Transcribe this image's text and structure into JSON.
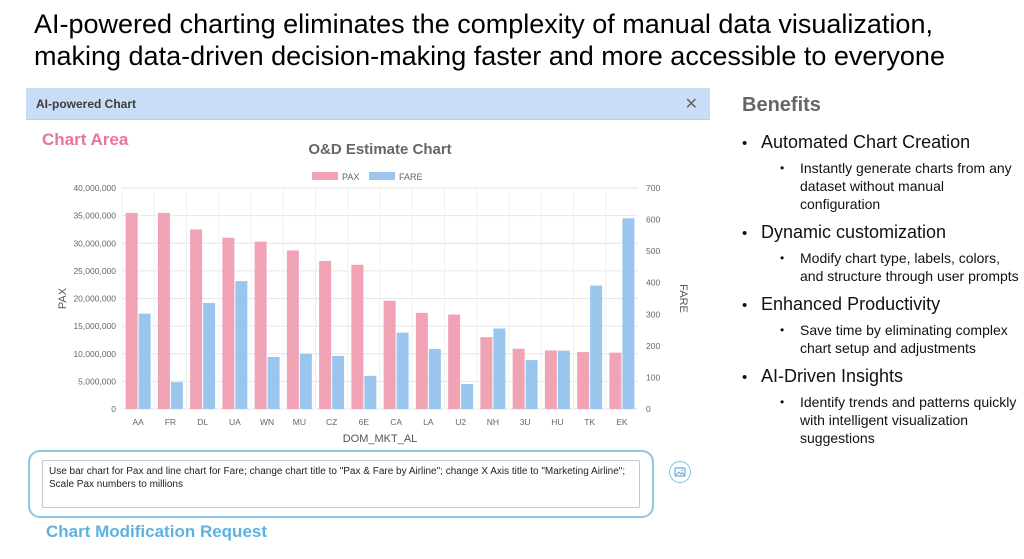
{
  "headline": "AI-powered charting eliminates the complexity of manual data visualization, making data-driven decision-making faster and more accessible to everyone",
  "panel": {
    "title": "AI-powered Chart",
    "chart_area_label": "Chart Area",
    "request_text": "Use bar chart for Pax and line chart for Fare; change chart title to \"Pax & Fare by Airline\"; change X Axis title to \"Marketing Airline\"; Scale Pax numbers to millions",
    "request_label": "Chart Modification Request"
  },
  "colors": {
    "pax": "#f0a3b4",
    "fare": "#9ac6ee",
    "chart_area": "#e9739a",
    "request": "#5fb1e0",
    "header": "#c9def6"
  },
  "icons": {
    "close": "close-icon",
    "image": "image-icon"
  },
  "chart_data": {
    "type": "bar",
    "title": "O&D Estimate Chart",
    "xlabel": "DOM_MKT_AL",
    "ylabel": "PAX",
    "y2label": "FARE",
    "categories": [
      "AA",
      "FR",
      "DL",
      "UA",
      "WN",
      "MU",
      "CZ",
      "6E",
      "CA",
      "LA",
      "U2",
      "NH",
      "3U",
      "HU",
      "TK",
      "EK"
    ],
    "series": [
      {
        "name": "PAX",
        "axis": "left",
        "values": [
          35500000,
          35500000,
          32500000,
          31000000,
          30300000,
          28700000,
          26800000,
          26100000,
          19600000,
          17400000,
          17100000,
          13000000,
          10900000,
          10600000,
          10300000,
          10200000
        ]
      },
      {
        "name": "FARE",
        "axis": "right",
        "values": [
          302,
          85,
          336,
          405,
          165,
          175,
          168,
          105,
          242,
          190,
          79,
          255,
          155,
          185,
          391,
          604
        ]
      }
    ],
    "ylim": [
      0,
      40000000
    ],
    "y2lim": [
      0,
      700
    ],
    "yticks": [
      "0",
      "5,000,000",
      "10,000,000",
      "15,000,000",
      "20,000,000",
      "25,000,000",
      "30,000,000",
      "35,000,000",
      "40,000,000"
    ],
    "y2ticks": [
      "0",
      "100",
      "200",
      "300",
      "400",
      "500",
      "600",
      "700"
    ],
    "legend": "top-center",
    "grid": true
  },
  "benefits": {
    "title": "Benefits",
    "items": [
      {
        "heading": "Automated Chart Creation",
        "detail": "Instantly generate charts from any dataset without manual configuration"
      },
      {
        "heading": "Dynamic customization",
        "detail": "Modify chart type, labels, colors, and structure through user prompts"
      },
      {
        "heading": "Enhanced Productivity",
        "detail": "Save time by eliminating complex chart setup and adjustments"
      },
      {
        "heading": "AI-Driven Insights",
        "detail": "Identify trends and patterns quickly with intelligent visualization suggestions"
      }
    ]
  }
}
